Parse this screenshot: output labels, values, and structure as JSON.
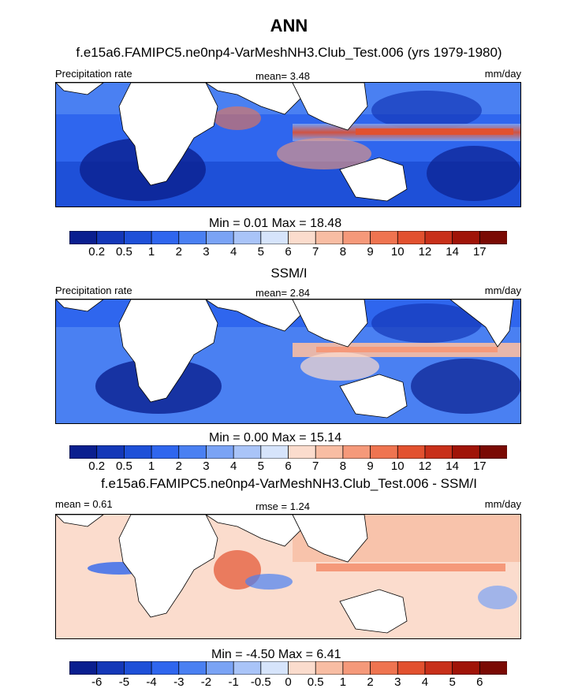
{
  "header": {
    "title": "ANN",
    "test_title": "f.e15a6.FAMIPC5.ne0np4-VarMeshNH3.Club_Test.006 (yrs 1979-1980)",
    "obs_title": "SSM/I",
    "diff_title": "f.e15a6.FAMIPC5.ne0np4-VarMeshNH3.Club_Test.006 - SSM/I"
  },
  "chart_data": [
    {
      "type": "heatmap",
      "title": "f.e15a6.FAMIPC5.ne0np4-VarMeshNH3.Club_Test.006 (yrs 1979-1980)",
      "left_label": "Precipitation rate",
      "center_label": "mean=   3.48",
      "right_label": "mm/day",
      "mean": 3.48,
      "min": 0.01,
      "max": 18.48,
      "minmax_text": "Min =   0.01 Max =  18.48",
      "levels": [
        "0.2",
        "0.5",
        "1",
        "2",
        "3",
        "4",
        "5",
        "6",
        "7",
        "8",
        "9",
        "10",
        "12",
        "14",
        "17"
      ],
      "colors": [
        "#0a1f8f",
        "#1438b8",
        "#1e50d8",
        "#2f66ee",
        "#4a80f2",
        "#7aa3f5",
        "#a9c4f8",
        "#d6e4fb",
        "#fbdccd",
        "#f8bda3",
        "#f5997a",
        "#ef7450",
        "#e2512f",
        "#c8301a",
        "#a01408",
        "#7a0a04"
      ]
    },
    {
      "type": "heatmap",
      "title": "SSM/I",
      "left_label": "Precipitation rate",
      "center_label": "mean=   2.84",
      "right_label": "mm/day",
      "mean": 2.84,
      "min": 0.0,
      "max": 15.14,
      "minmax_text": "Min =   0.00 Max =  15.14",
      "levels": [
        "0.2",
        "0.5",
        "1",
        "2",
        "3",
        "4",
        "5",
        "6",
        "7",
        "8",
        "9",
        "10",
        "12",
        "14",
        "17"
      ],
      "colors": [
        "#0a1f8f",
        "#1438b8",
        "#1e50d8",
        "#2f66ee",
        "#4a80f2",
        "#7aa3f5",
        "#a9c4f8",
        "#d6e4fb",
        "#fbdccd",
        "#f8bda3",
        "#f5997a",
        "#ef7450",
        "#e2512f",
        "#c8301a",
        "#a01408",
        "#7a0a04"
      ]
    },
    {
      "type": "heatmap",
      "title": "f.e15a6.FAMIPC5.ne0np4-VarMeshNH3.Club_Test.006 - SSM/I",
      "left_label": "mean =   0.61",
      "center_label": "rmse =   1.24",
      "right_label": "mm/day",
      "mean": 0.61,
      "rmse": 1.24,
      "min": -4.5,
      "max": 6.41,
      "minmax_text": "Min =  -4.50 Max =   6.41",
      "levels": [
        "-6",
        "-5",
        "-4",
        "-3",
        "-2",
        "-1",
        "-0.5",
        "0",
        "0.5",
        "1",
        "2",
        "3",
        "4",
        "5",
        "6"
      ],
      "colors": [
        "#0a1f8f",
        "#1438b8",
        "#1e50d8",
        "#2f66ee",
        "#4a80f2",
        "#7aa3f5",
        "#a9c4f8",
        "#d6e4fb",
        "#fbdccd",
        "#f8bda3",
        "#f5997a",
        "#ef7450",
        "#e2512f",
        "#c8301a",
        "#a01408",
        "#7a0a04"
      ]
    }
  ]
}
